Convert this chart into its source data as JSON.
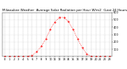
{
  "title": "Milwaukee Weather  Average Solar Radiation per Hour W/m2  (Last 24 Hours)",
  "hours": [
    0,
    1,
    2,
    3,
    4,
    5,
    6,
    7,
    8,
    9,
    10,
    11,
    12,
    13,
    14,
    15,
    16,
    17,
    18,
    19,
    20,
    21,
    22,
    23
  ],
  "values": [
    0,
    0,
    0,
    0,
    0,
    2,
    18,
    65,
    140,
    240,
    370,
    470,
    535,
    530,
    475,
    370,
    240,
    120,
    35,
    2,
    0,
    0,
    0,
    0
  ],
  "line_color": "#ff0000",
  "bg_color": "#ffffff",
  "grid_color": "#999999",
  "ylim": [
    0,
    600
  ],
  "yticks": [
    100,
    200,
    300,
    400,
    500,
    600
  ],
  "title_fontsize": 3.0,
  "tick_fontsize": 2.5
}
